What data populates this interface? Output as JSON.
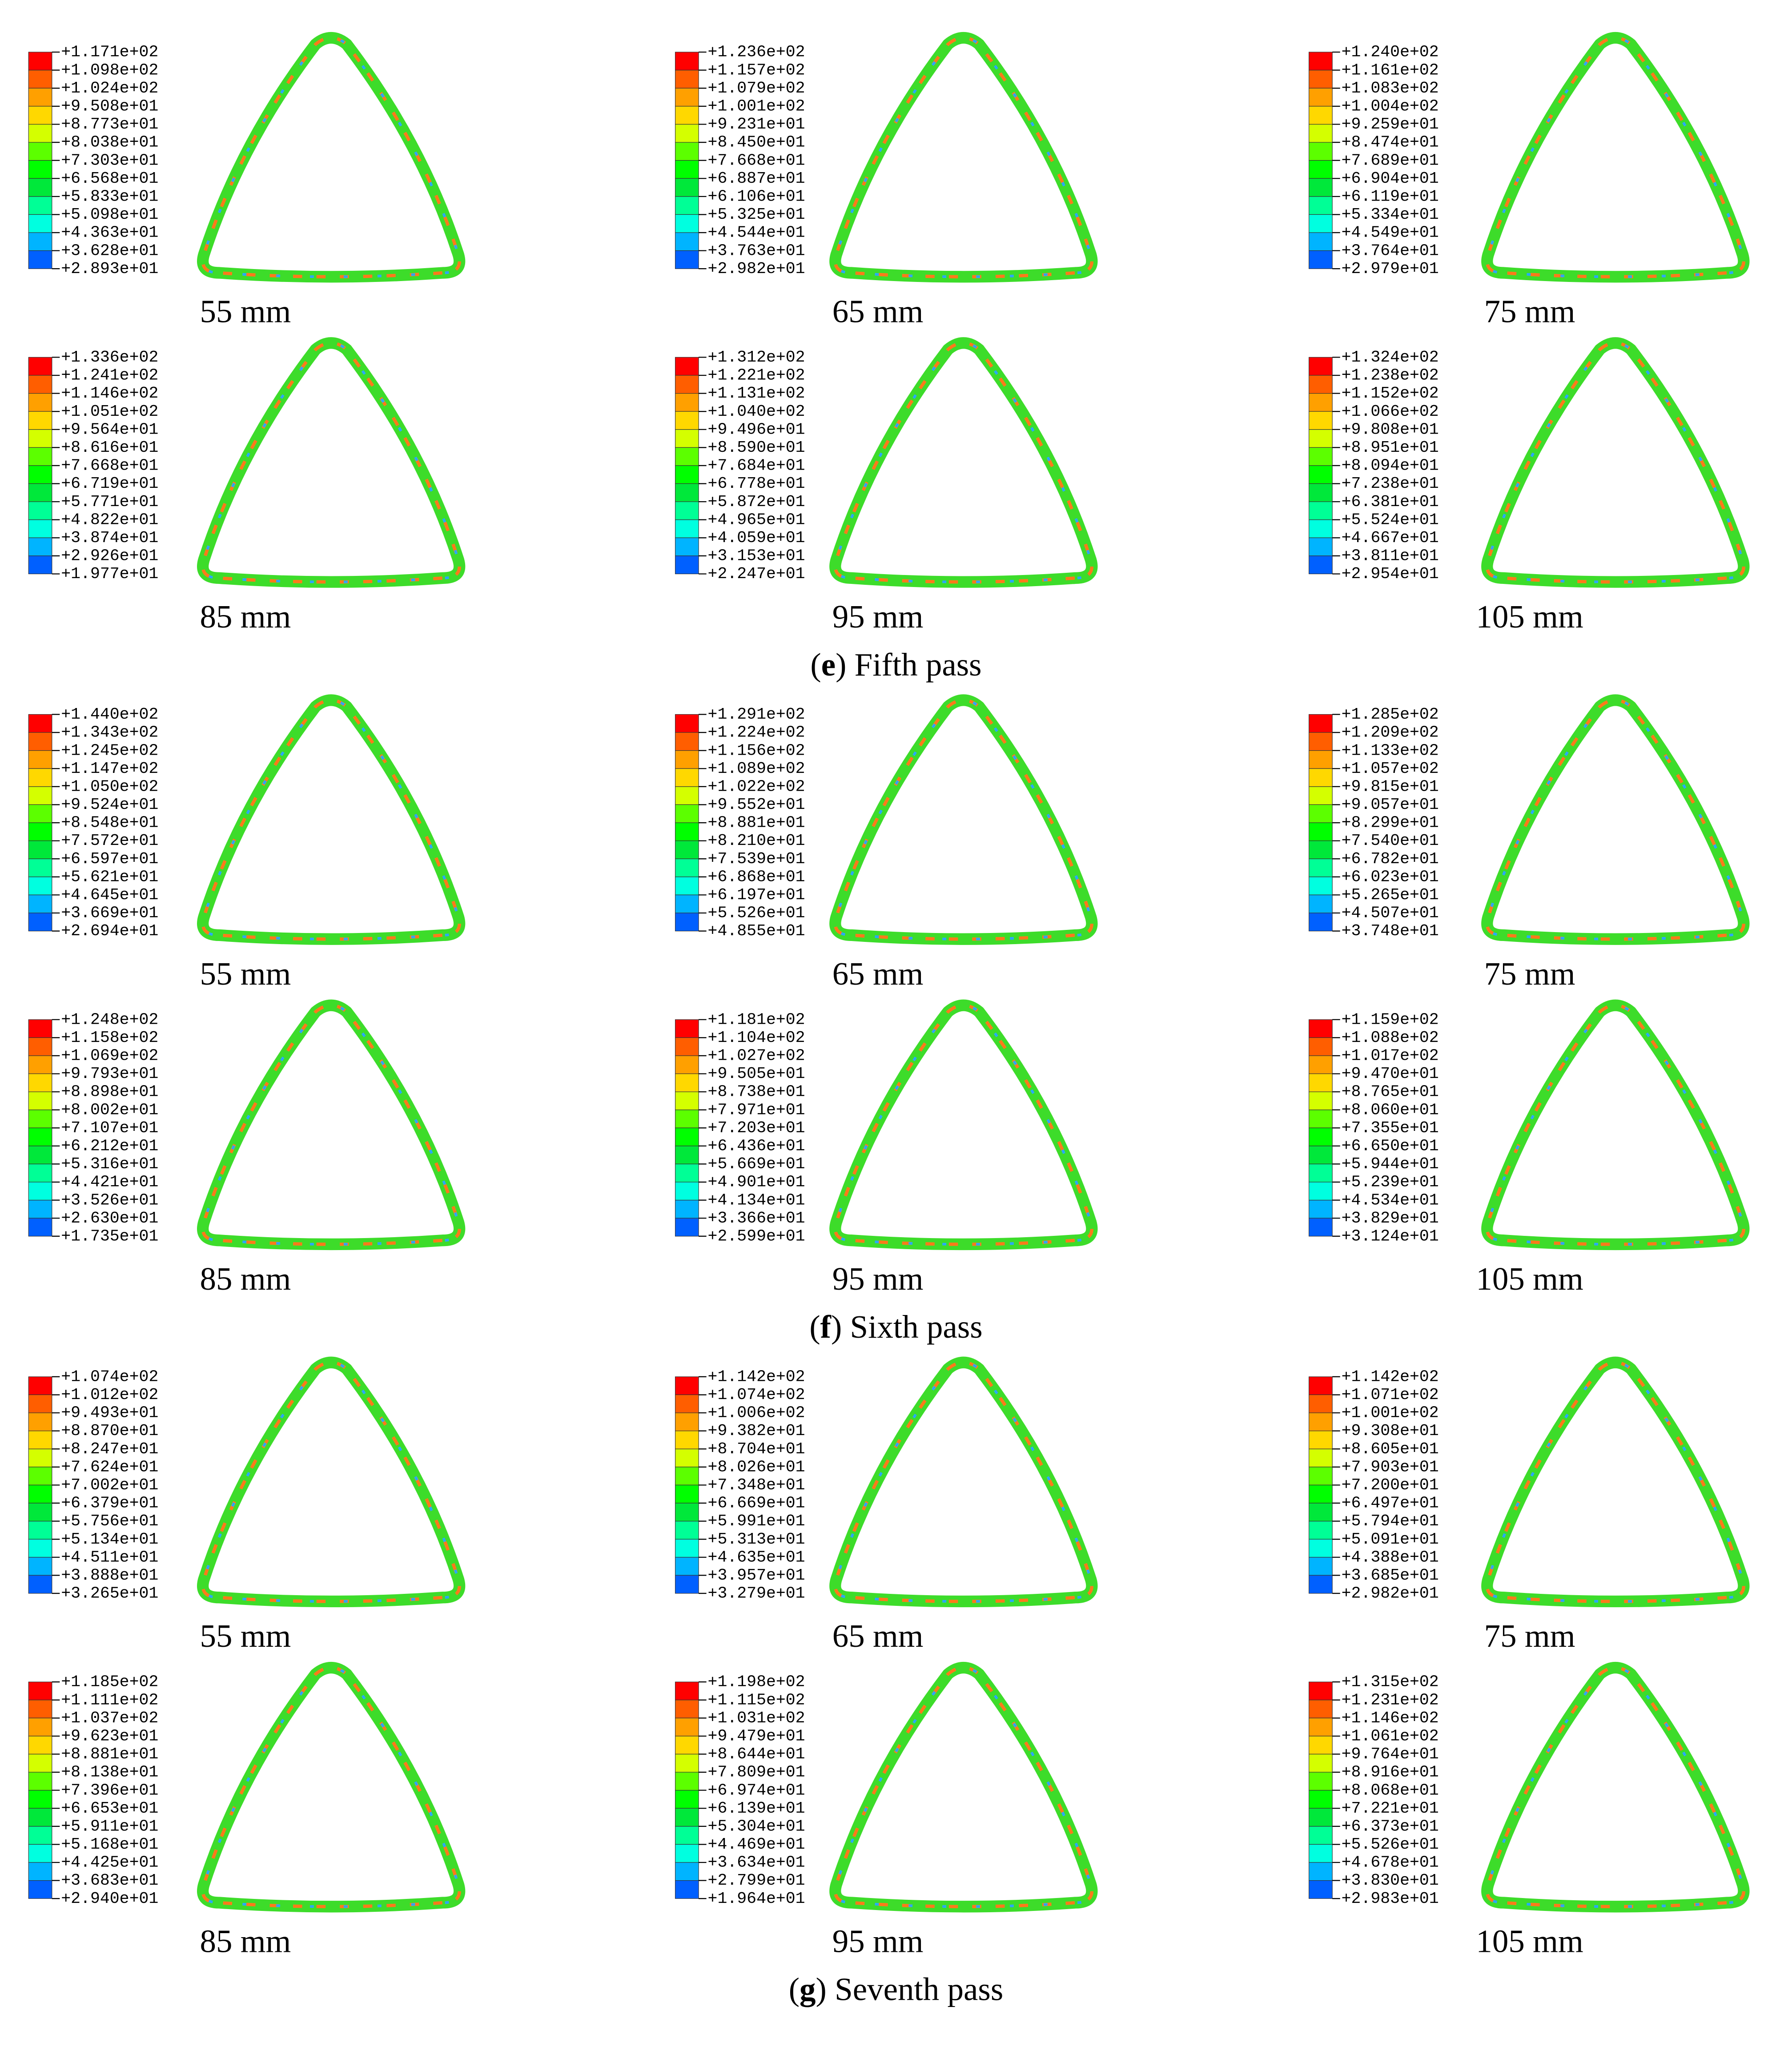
{
  "passes": [
    {
      "caption": [
        "(",
        "e",
        ") Fifth pass"
      ],
      "panels": [
        {
          "label": "55 mm",
          "legend": [
            "+1.171e+02",
            "+1.098e+02",
            "+1.024e+02",
            "+9.508e+01",
            "+8.773e+01",
            "+8.038e+01",
            "+7.303e+01",
            "+6.568e+01",
            "+5.833e+01",
            "+5.098e+01",
            "+4.363e+01",
            "+3.628e+01",
            "+2.893e+01"
          ]
        },
        {
          "label": "65 mm",
          "legend": [
            "+1.236e+02",
            "+1.157e+02",
            "+1.079e+02",
            "+1.001e+02",
            "+9.231e+01",
            "+8.450e+01",
            "+7.668e+01",
            "+6.887e+01",
            "+6.106e+01",
            "+5.325e+01",
            "+4.544e+01",
            "+3.763e+01",
            "+2.982e+01"
          ]
        },
        {
          "label": "75 mm",
          "legend": [
            "+1.240e+02",
            "+1.161e+02",
            "+1.083e+02",
            "+1.004e+02",
            "+9.259e+01",
            "+8.474e+01",
            "+7.689e+01",
            "+6.904e+01",
            "+6.119e+01",
            "+5.334e+01",
            "+4.549e+01",
            "+3.764e+01",
            "+2.979e+01"
          ]
        },
        {
          "label": "85 mm",
          "legend": [
            "+1.336e+02",
            "+1.241e+02",
            "+1.146e+02",
            "+1.051e+02",
            "+9.564e+01",
            "+8.616e+01",
            "+7.668e+01",
            "+6.719e+01",
            "+5.771e+01",
            "+4.822e+01",
            "+3.874e+01",
            "+2.926e+01",
            "+1.977e+01"
          ]
        },
        {
          "label": "95 mm",
          "legend": [
            "+1.312e+02",
            "+1.221e+02",
            "+1.131e+02",
            "+1.040e+02",
            "+9.496e+01",
            "+8.590e+01",
            "+7.684e+01",
            "+6.778e+01",
            "+5.872e+01",
            "+4.965e+01",
            "+4.059e+01",
            "+3.153e+01",
            "+2.247e+01"
          ]
        },
        {
          "label": "105 mm",
          "legend": [
            "+1.324e+02",
            "+1.238e+02",
            "+1.152e+02",
            "+1.066e+02",
            "+9.808e+01",
            "+8.951e+01",
            "+8.094e+01",
            "+7.238e+01",
            "+6.381e+01",
            "+5.524e+01",
            "+4.667e+01",
            "+3.811e+01",
            "+2.954e+01"
          ]
        }
      ]
    },
    {
      "caption": [
        "(",
        "f",
        ") Sixth pass"
      ],
      "panels": [
        {
          "label": "55 mm",
          "legend": [
            "+1.440e+02",
            "+1.343e+02",
            "+1.245e+02",
            "+1.147e+02",
            "+1.050e+02",
            "+9.524e+01",
            "+8.548e+01",
            "+7.572e+01",
            "+6.597e+01",
            "+5.621e+01",
            "+4.645e+01",
            "+3.669e+01",
            "+2.694e+01"
          ]
        },
        {
          "label": "65 mm",
          "legend": [
            "+1.291e+02",
            "+1.224e+02",
            "+1.156e+02",
            "+1.089e+02",
            "+1.022e+02",
            "+9.552e+01",
            "+8.881e+01",
            "+8.210e+01",
            "+7.539e+01",
            "+6.868e+01",
            "+6.197e+01",
            "+5.526e+01",
            "+4.855e+01"
          ]
        },
        {
          "label": "75 mm",
          "legend": [
            "+1.285e+02",
            "+1.209e+02",
            "+1.133e+02",
            "+1.057e+02",
            "+9.815e+01",
            "+9.057e+01",
            "+8.299e+01",
            "+7.540e+01",
            "+6.782e+01",
            "+6.023e+01",
            "+5.265e+01",
            "+4.507e+01",
            "+3.748e+01"
          ]
        },
        {
          "label": "85 mm",
          "legend": [
            "+1.248e+02",
            "+1.158e+02",
            "+1.069e+02",
            "+9.793e+01",
            "+8.898e+01",
            "+8.002e+01",
            "+7.107e+01",
            "+6.212e+01",
            "+5.316e+01",
            "+4.421e+01",
            "+3.526e+01",
            "+2.630e+01",
            "+1.735e+01"
          ]
        },
        {
          "label": "95 mm",
          "legend": [
            "+1.181e+02",
            "+1.104e+02",
            "+1.027e+02",
            "+9.505e+01",
            "+8.738e+01",
            "+7.971e+01",
            "+7.203e+01",
            "+6.436e+01",
            "+5.669e+01",
            "+4.901e+01",
            "+4.134e+01",
            "+3.366e+01",
            "+2.599e+01"
          ]
        },
        {
          "label": "105 mm",
          "legend": [
            "+1.159e+02",
            "+1.088e+02",
            "+1.017e+02",
            "+9.470e+01",
            "+8.765e+01",
            "+8.060e+01",
            "+7.355e+01",
            "+6.650e+01",
            "+5.944e+01",
            "+5.239e+01",
            "+4.534e+01",
            "+3.829e+01",
            "+3.124e+01"
          ]
        }
      ]
    },
    {
      "caption": [
        "(",
        "g",
        ") Seventh pass"
      ],
      "panels": [
        {
          "label": "55 mm",
          "legend": [
            "+1.074e+02",
            "+1.012e+02",
            "+9.493e+01",
            "+8.870e+01",
            "+8.247e+01",
            "+7.624e+01",
            "+7.002e+01",
            "+6.379e+01",
            "+5.756e+01",
            "+5.134e+01",
            "+4.511e+01",
            "+3.888e+01",
            "+3.265e+01"
          ]
        },
        {
          "label": "65 mm",
          "legend": [
            "+1.142e+02",
            "+1.074e+02",
            "+1.006e+02",
            "+9.382e+01",
            "+8.704e+01",
            "+8.026e+01",
            "+7.348e+01",
            "+6.669e+01",
            "+5.991e+01",
            "+5.313e+01",
            "+4.635e+01",
            "+3.957e+01",
            "+3.279e+01"
          ]
        },
        {
          "label": "75 mm",
          "legend": [
            "+1.142e+02",
            "+1.071e+02",
            "+1.001e+02",
            "+9.308e+01",
            "+8.605e+01",
            "+7.903e+01",
            "+7.200e+01",
            "+6.497e+01",
            "+5.794e+01",
            "+5.091e+01",
            "+4.388e+01",
            "+3.685e+01",
            "+2.982e+01"
          ]
        },
        {
          "label": "85 mm",
          "legend": [
            "+1.185e+02",
            "+1.111e+02",
            "+1.037e+02",
            "+9.623e+01",
            "+8.881e+01",
            "+8.138e+01",
            "+7.396e+01",
            "+6.653e+01",
            "+5.911e+01",
            "+5.168e+01",
            "+4.425e+01",
            "+3.683e+01",
            "+2.940e+01"
          ]
        },
        {
          "label": "95 mm",
          "legend": [
            "+1.198e+02",
            "+1.115e+02",
            "+1.031e+02",
            "+9.479e+01",
            "+8.644e+01",
            "+7.809e+01",
            "+6.974e+01",
            "+6.139e+01",
            "+5.304e+01",
            "+4.469e+01",
            "+3.634e+01",
            "+2.799e+01",
            "+1.964e+01"
          ]
        },
        {
          "label": "105 mm",
          "legend": [
            "+1.315e+02",
            "+1.231e+02",
            "+1.146e+02",
            "+1.061e+02",
            "+9.764e+01",
            "+8.916e+01",
            "+8.068e+01",
            "+7.221e+01",
            "+6.373e+01",
            "+5.526e+01",
            "+4.678e+01",
            "+3.830e+01",
            "+2.983e+01"
          ]
        }
      ]
    }
  ]
}
